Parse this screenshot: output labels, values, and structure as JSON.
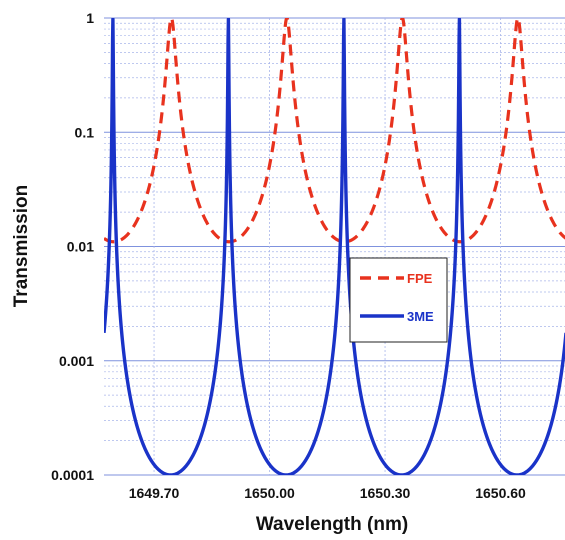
{
  "chart_data": {
    "type": "line",
    "title": "",
    "xlabel": "Wavelength (nm)",
    "ylabel": "Transmission",
    "y_scale": "log",
    "xlim": [
      1649.57,
      1650.77
    ],
    "ylim": [
      0.0001,
      1
    ],
    "x_ticks": [
      "1649.70",
      "1650.00",
      "1650.30",
      "1650.60"
    ],
    "y_ticks": [
      "1",
      "0.1",
      "0.01",
      "0.001",
      "0.0001"
    ],
    "grid": true,
    "legend_position": "center-right",
    "series": [
      {
        "name": "FPE",
        "color": "#e8321e",
        "style": "dashed",
        "peaks": [
          1649.745,
          1650.045,
          1650.345,
          1650.645
        ],
        "peak_value": 1,
        "min_value": 0.011,
        "period": 0.3
      },
      {
        "name": "3ME",
        "color": "#1a33c8",
        "style": "solid",
        "peaks": [
          1649.593,
          1649.893,
          1650.193,
          1650.493
        ],
        "peak_value": 1,
        "min_value": 0.0001,
        "period": 0.3
      }
    ]
  }
}
